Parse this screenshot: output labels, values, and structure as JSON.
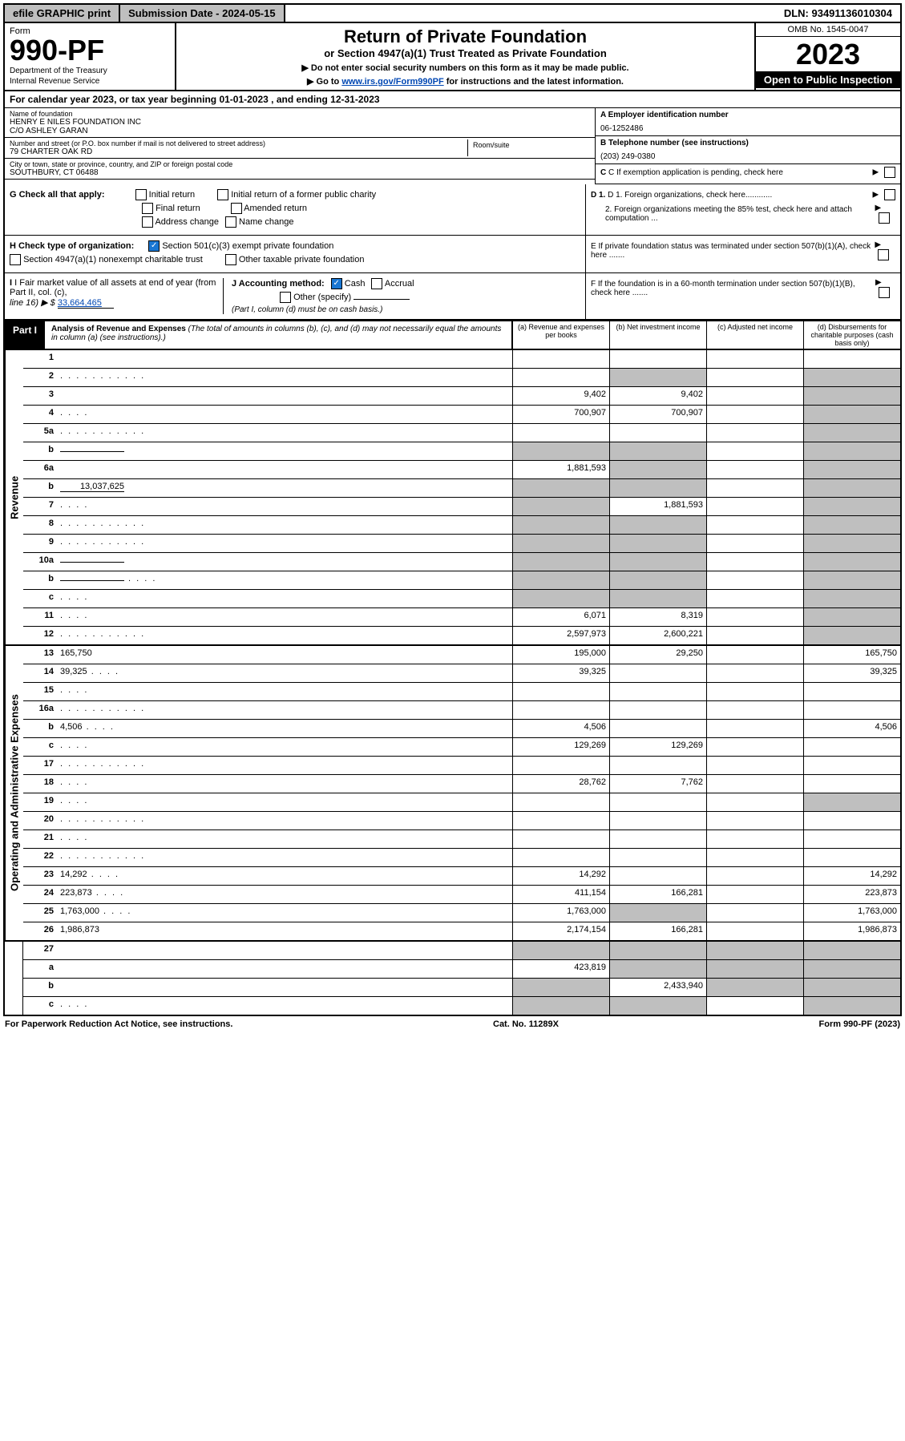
{
  "topbar": {
    "efile": "efile GRAPHIC print",
    "submission_label": "Submission Date - 2024-05-15",
    "dln": "DLN: 93491136010304"
  },
  "header": {
    "form_label": "Form",
    "form_number": "990-PF",
    "dept1": "Department of the Treasury",
    "dept2": "Internal Revenue Service",
    "title": "Return of Private Foundation",
    "subtitle": "or Section 4947(a)(1) Trust Treated as Private Foundation",
    "instr1": "▶ Do not enter social security numbers on this form as it may be made public.",
    "instr2_pre": "▶ Go to ",
    "instr2_link": "www.irs.gov/Form990PF",
    "instr2_post": " for instructions and the latest information.",
    "omb": "OMB No. 1545-0047",
    "tax_year": "2023",
    "open_public": "Open to Public Inspection"
  },
  "cal_year": "For calendar year 2023, or tax year beginning 01-01-2023            , and ending 12-31-2023",
  "foundation": {
    "name_label": "Name of foundation",
    "name1": "HENRY E NILES FOUNDATION INC",
    "name2": "C/O ASHLEY GARAN",
    "addr_label": "Number and street (or P.O. box number if mail is not delivered to street address)",
    "addr": "79 CHARTER OAK RD",
    "room_label": "Room/suite",
    "city_label": "City or town, state or province, country, and ZIP or foreign postal code",
    "city": "SOUTHBURY, CT  06488"
  },
  "right_info": {
    "a_label": "A Employer identification number",
    "a_value": "06-1252486",
    "b_label": "B Telephone number (see instructions)",
    "b_value": "(203) 249-0380",
    "c_label": "C If exemption application is pending, check here",
    "d1_label": "D 1. Foreign organizations, check here............",
    "d2_label": "2. Foreign organizations meeting the 85% test, check here and attach computation ...",
    "e_label": "E  If private foundation status was terminated under section 507(b)(1)(A), check here .......",
    "f_label": "F  If the foundation is in a 60-month termination under section 507(b)(1)(B), check here .......",
    "arrow": "▶"
  },
  "g_section": {
    "label": "G Check all that apply:",
    "initial": "Initial return",
    "initial_former": "Initial return of a former public charity",
    "final": "Final return",
    "amended": "Amended return",
    "addr_change": "Address change",
    "name_change": "Name change"
  },
  "h_section": {
    "label": "H Check type of organization:",
    "opt1": "Section 501(c)(3) exempt private foundation",
    "opt2": "Section 4947(a)(1) nonexempt charitable trust",
    "opt3": "Other taxable private foundation"
  },
  "i_section": {
    "label": "I Fair market value of all assets at end of year (from Part II, col. (c),",
    "line16": "line 16) ▶ $",
    "value": "33,664,465"
  },
  "j_section": {
    "label": "J Accounting method:",
    "cash": "Cash",
    "accrual": "Accrual",
    "other": "Other (specify)",
    "note": "(Part I, column (d) must be on cash basis.)"
  },
  "part1": {
    "label": "Part I",
    "title": "Analysis of Revenue and Expenses",
    "desc": "(The total of amounts in columns (b), (c), and (d) may not necessarily equal the amounts in column (a) (see instructions).)",
    "col_a": "(a)  Revenue and expenses per books",
    "col_b": "(b)  Net investment income",
    "col_c": "(c)  Adjusted net income",
    "col_d": "(d)  Disbursements for charitable purposes (cash basis only)"
  },
  "side_labels": {
    "revenue": "Revenue",
    "expenses": "Operating and Administrative Expenses"
  },
  "rows": [
    {
      "n": "1",
      "d": "",
      "a": "",
      "b": "",
      "c": "",
      "bg": false,
      "dg": false
    },
    {
      "n": "2",
      "d": "",
      "a": "",
      "b": "",
      "c": "",
      "bg": true,
      "dg": true,
      "dots": true
    },
    {
      "n": "3",
      "d": "",
      "a": "9,402",
      "b": "9,402",
      "c": "",
      "dg": true
    },
    {
      "n": "4",
      "d": "",
      "a": "700,907",
      "b": "700,907",
      "c": "",
      "dg": true,
      "dots_s": true
    },
    {
      "n": "5a",
      "d": "",
      "a": "",
      "b": "",
      "c": "",
      "dg": true,
      "dots": true
    },
    {
      "n": "b",
      "d": "",
      "a": "",
      "b": "",
      "c": "",
      "ag": true,
      "bg": true,
      "dg": true,
      "inline": true
    },
    {
      "n": "6a",
      "d": "",
      "a": "1,881,593",
      "b": "",
      "c": "",
      "bg": true,
      "dg": true
    },
    {
      "n": "b",
      "d": "",
      "a": "",
      "b": "",
      "c": "",
      "ag": true,
      "bg": true,
      "dg": true,
      "inline_v": "13,037,625"
    },
    {
      "n": "7",
      "d": "",
      "a": "",
      "b": "1,881,593",
      "c": "",
      "ag": true,
      "dg": true,
      "dots_s": true
    },
    {
      "n": "8",
      "d": "",
      "a": "",
      "b": "",
      "c": "",
      "ag": true,
      "bg": true,
      "dg": true,
      "dots": true
    },
    {
      "n": "9",
      "d": "",
      "a": "",
      "b": "",
      "c": "",
      "ag": true,
      "bg": true,
      "dg": true,
      "dots": true
    },
    {
      "n": "10a",
      "d": "",
      "a": "",
      "b": "",
      "c": "",
      "ag": true,
      "bg": true,
      "dg": true,
      "inline": true
    },
    {
      "n": "b",
      "d": "",
      "a": "",
      "b": "",
      "c": "",
      "ag": true,
      "bg": true,
      "dg": true,
      "inline": true,
      "dots_s": true
    },
    {
      "n": "c",
      "d": "",
      "a": "",
      "b": "",
      "c": "",
      "ag": true,
      "bg": true,
      "dg": true,
      "dots_s": true
    },
    {
      "n": "11",
      "d": "",
      "a": "6,071",
      "b": "8,319",
      "c": "",
      "dg": true,
      "dots_s": true
    },
    {
      "n": "12",
      "d": "",
      "a": "2,597,973",
      "b": "2,600,221",
      "c": "",
      "dg": true,
      "dots": true
    }
  ],
  "exp_rows": [
    {
      "n": "13",
      "d": "165,750",
      "a": "195,000",
      "b": "29,250",
      "c": ""
    },
    {
      "n": "14",
      "d": "39,325",
      "a": "39,325",
      "b": "",
      "c": "",
      "dots_s": true
    },
    {
      "n": "15",
      "d": "",
      "a": "",
      "b": "",
      "c": "",
      "dots_s": true
    },
    {
      "n": "16a",
      "d": "",
      "a": "",
      "b": "",
      "c": "",
      "dots": true
    },
    {
      "n": "b",
      "d": "4,506",
      "a": "4,506",
      "b": "",
      "c": "",
      "dots_s": true
    },
    {
      "n": "c",
      "d": "",
      "a": "129,269",
      "b": "129,269",
      "c": "",
      "dots_s": true
    },
    {
      "n": "17",
      "d": "",
      "a": "",
      "b": "",
      "c": "",
      "dots": true
    },
    {
      "n": "18",
      "d": "",
      "a": "28,762",
      "b": "7,762",
      "c": "",
      "dots_s": true
    },
    {
      "n": "19",
      "d": "",
      "a": "",
      "b": "",
      "c": "",
      "dg": true,
      "dots_s": true
    },
    {
      "n": "20",
      "d": "",
      "a": "",
      "b": "",
      "c": "",
      "dots": true
    },
    {
      "n": "21",
      "d": "",
      "a": "",
      "b": "",
      "c": "",
      "dots_s": true
    },
    {
      "n": "22",
      "d": "",
      "a": "",
      "b": "",
      "c": "",
      "dots": true
    },
    {
      "n": "23",
      "d": "14,292",
      "a": "14,292",
      "b": "",
      "c": "",
      "dots_s": true
    },
    {
      "n": "24",
      "d": "223,873",
      "a": "411,154",
      "b": "166,281",
      "c": "",
      "dots_s": true
    },
    {
      "n": "25",
      "d": "1,763,000",
      "a": "1,763,000",
      "b": "",
      "c": "",
      "bg": true,
      "dots_s": true
    },
    {
      "n": "26",
      "d": "1,986,873",
      "a": "2,174,154",
      "b": "166,281",
      "c": ""
    }
  ],
  "final_rows": [
    {
      "n": "27",
      "d": "",
      "a": "",
      "b": "",
      "c": "",
      "ag": true,
      "bg": true,
      "cg": true,
      "dg": true
    },
    {
      "n": "a",
      "d": "",
      "a": "423,819",
      "b": "",
      "c": "",
      "bg": true,
      "cg": true,
      "dg": true
    },
    {
      "n": "b",
      "d": "",
      "a": "",
      "b": "2,433,940",
      "c": "",
      "ag": true,
      "cg": true,
      "dg": true
    },
    {
      "n": "c",
      "d": "",
      "a": "",
      "b": "",
      "c": "",
      "ag": true,
      "bg": true,
      "dg": true,
      "dots_s": true
    }
  ],
  "footer": {
    "left": "For Paperwork Reduction Act Notice, see instructions.",
    "mid": "Cat. No. 11289X",
    "right": "Form 990-PF (2023)"
  }
}
